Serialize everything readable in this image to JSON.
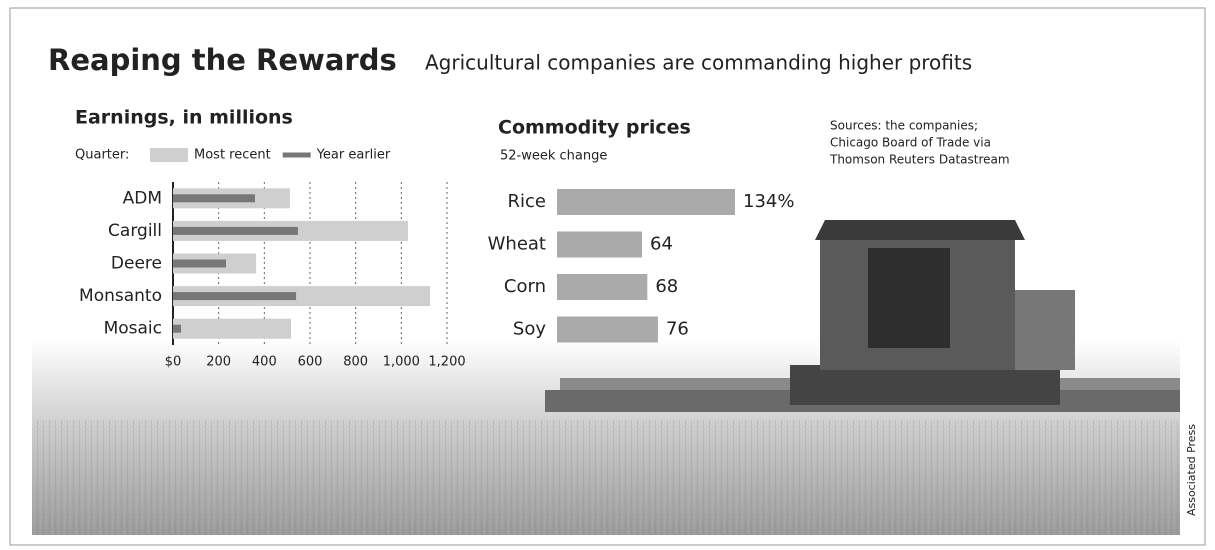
{
  "title": "Reaping the Rewards",
  "subtitle": "Agricultural companies are commanding higher profits",
  "sources": [
    "Sources: the companies;",
    "Chicago Board of Trade via",
    "Thomson Reuters Datastream"
  ],
  "credit": "Associated Press",
  "chart_data": [
    {
      "type": "bar",
      "orientation": "horizontal",
      "title": "Earnings, in millions",
      "legend_title": "Quarter:",
      "categories": [
        "ADM",
        "Cargill",
        "Deere",
        "Monsanto",
        "Mosaic"
      ],
      "series": [
        {
          "name": "Most recent",
          "color": "#cfcfcf",
          "values": [
            512,
            1029,
            364,
            1126,
            517
          ]
        },
        {
          "name": "Year earlier",
          "color": "#777777",
          "values": [
            359,
            547,
            232,
            539,
            35
          ]
        }
      ],
      "xlim": [
        0,
        1200
      ],
      "xticks": [
        {
          "value": 0,
          "label": "$0"
        },
        200,
        400,
        600,
        800,
        {
          "value": 1000,
          "label": "1,000"
        },
        {
          "value": 1200,
          "label": "1,200"
        }
      ],
      "grid": true
    },
    {
      "type": "bar",
      "orientation": "horizontal",
      "title": "Commodity prices",
      "subtitle": "52-week change",
      "categories": [
        "Rice",
        "Wheat",
        "Corn",
        "Soy"
      ],
      "values": [
        134,
        64,
        68,
        76
      ],
      "value_labels": [
        "134%",
        "64",
        "68",
        "76"
      ],
      "color": "#aaaaaa"
    }
  ]
}
